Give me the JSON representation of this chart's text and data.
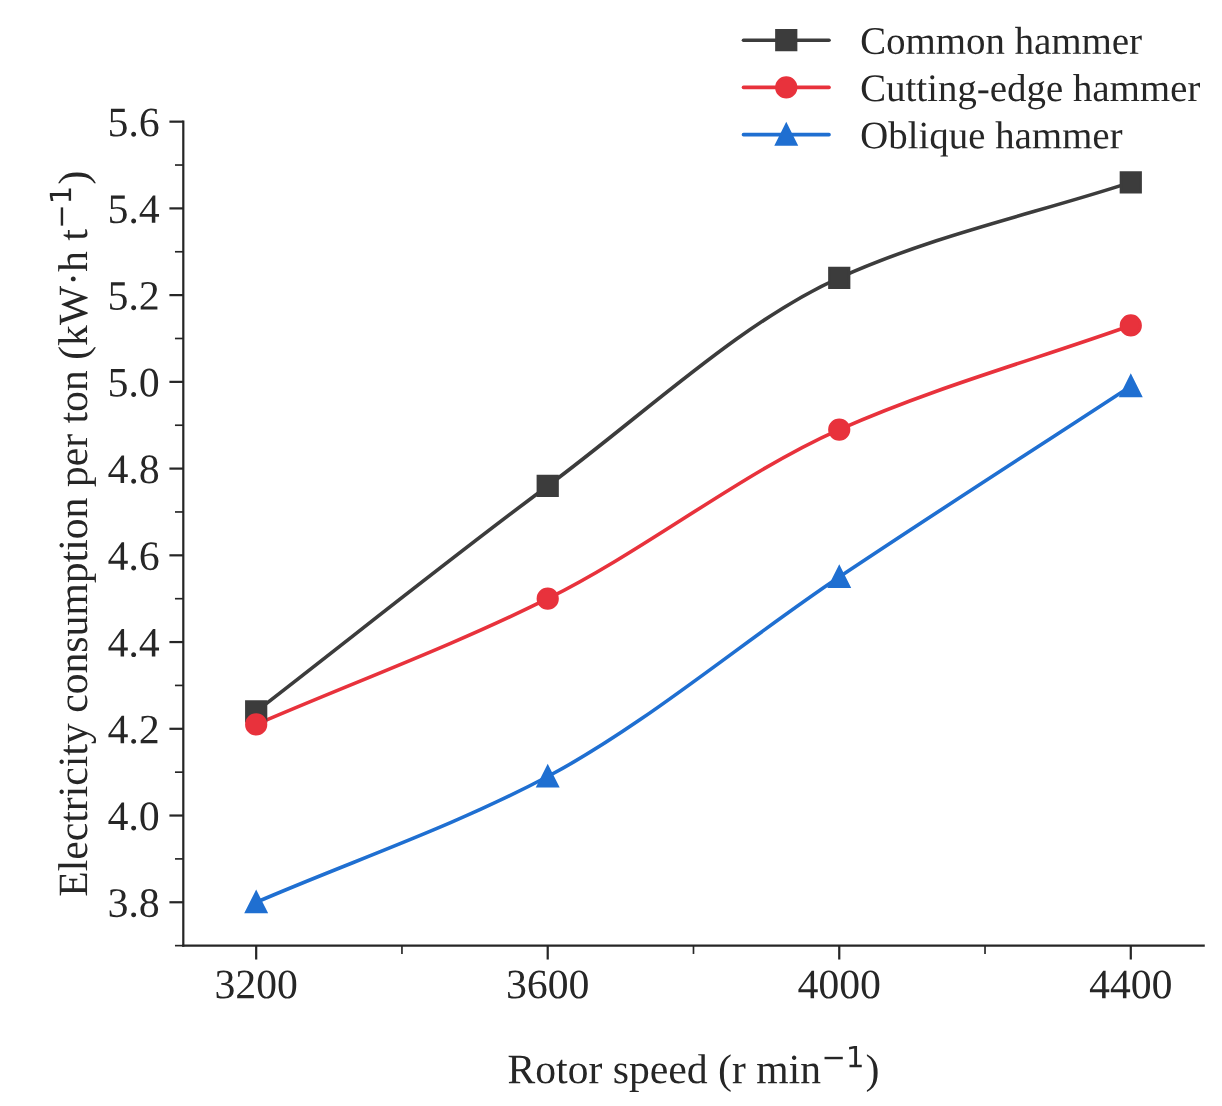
{
  "chart_data": {
    "type": "line",
    "xlabel": "Rotor speed (r min$^{−1}$)",
    "ylabel": "Electricity consumption per ton (kW·h t$^{−1}$)",
    "x": [
      3200,
      3600,
      4000,
      4400
    ],
    "series": [
      {
        "name": "Common hammer",
        "color": "#3c3c3c",
        "marker": "square",
        "values": [
          4.24,
          4.76,
          5.24,
          5.46
        ]
      },
      {
        "name": "Cutting-edge hammer",
        "color": "#e8323c",
        "marker": "circle",
        "values": [
          4.21,
          4.5,
          4.89,
          5.13
        ]
      },
      {
        "name": "Oblique hammer",
        "color": "#1f6fd1",
        "marker": "triangle",
        "values": [
          3.8,
          4.09,
          4.55,
          4.99
        ]
      }
    ],
    "xlim": [
      3100,
      4500
    ],
    "xticks": [
      3200,
      3600,
      4000,
      4400
    ],
    "ylim": [
      3.7,
      5.6
    ],
    "yticks": [
      {
        "value": 3.8,
        "label": "3.8"
      },
      {
        "value": 4.0,
        "label": "4.0"
      },
      {
        "value": 4.2,
        "label": "4.2"
      },
      {
        "value": 4.4,
        "label": "4.4"
      },
      {
        "value": 4.6,
        "label": "4.6"
      },
      {
        "value": 4.8,
        "label": "4.8"
      },
      {
        "value": 5.0,
        "label": "5.0"
      },
      {
        "value": 5.2,
        "label": "5.2"
      },
      {
        "value": 5.4,
        "label": "5.4"
      },
      {
        "value": 5.6,
        "label": "5.6"
      }
    ],
    "grid": false,
    "legend": "top right",
    "line_style": "solid"
  }
}
